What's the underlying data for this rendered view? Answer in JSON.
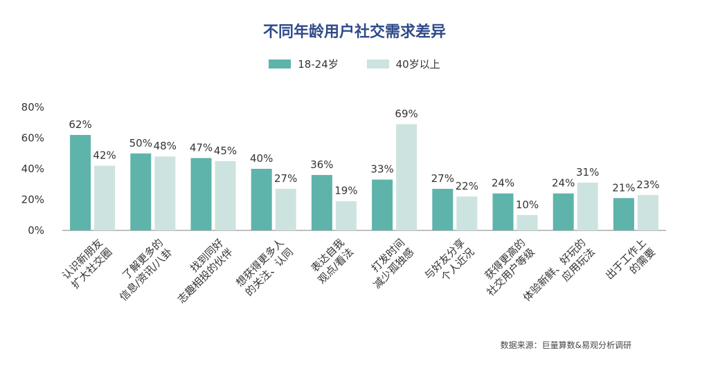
{
  "colors": {
    "series1": "#5eb3ab",
    "series2": "#cde3df",
    "title": "#2f4a8a",
    "axis": "#7f7f7f"
  },
  "chart_data": {
    "type": "bar",
    "title": "不同年龄用户社交需求差异",
    "categories": [
      [
        "认识新朋友",
        "扩大社交圈"
      ],
      [
        "了解更多的",
        "信息/资讯/八卦"
      ],
      [
        "找到同好",
        "志趣相投的伙伴"
      ],
      [
        "想获得更多人",
        "的关注、认同"
      ],
      [
        "表达自我",
        "观点/看法"
      ],
      [
        "打发时间",
        "减少孤独感"
      ],
      [
        "与好友分享",
        "个人近况"
      ],
      [
        "获得更高的",
        "社交用户等级"
      ],
      [
        "体验新鲜、好玩的",
        "应用玩法"
      ],
      [
        "出于工作上",
        "的需要"
      ]
    ],
    "series": [
      {
        "name": "18-24岁",
        "values": [
          62,
          50,
          47,
          40,
          36,
          33,
          27,
          24,
          24,
          21
        ],
        "labels": [
          "62%",
          "50%",
          "47%",
          "40%",
          "36%",
          "33%",
          "27%",
          "24%",
          "24%",
          "21%"
        ]
      },
      {
        "name": "40岁以上",
        "values": [
          42,
          48,
          45,
          27,
          19,
          69,
          22,
          10,
          31,
          23
        ],
        "labels": [
          "42%",
          "48%",
          "45%",
          "27%",
          "19%",
          "69%",
          "22%",
          "10%",
          "31%",
          "23%"
        ]
      }
    ],
    "ylim": [
      0,
      80
    ],
    "yticks": [
      "0%",
      "20%",
      "40%",
      "60%",
      "80%"
    ],
    "legend_position": "top-center",
    "grid": false
  },
  "source": "数据来源：巨量算数&易观分析调研"
}
